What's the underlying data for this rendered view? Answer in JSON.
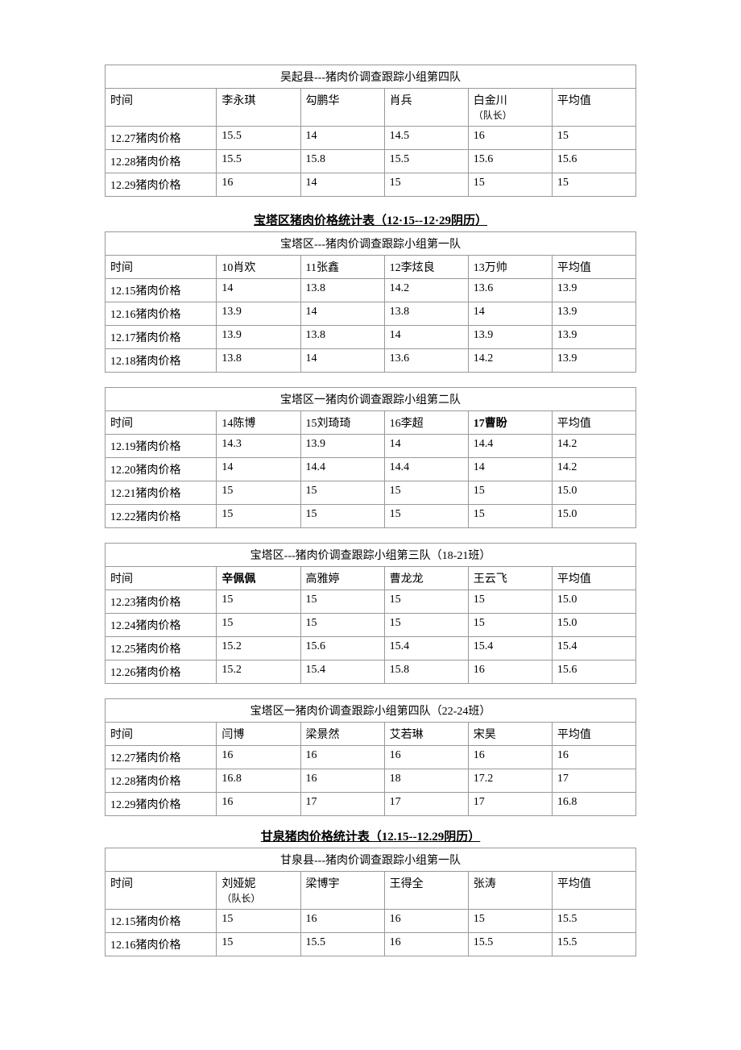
{
  "tables": [
    {
      "caption": "吴起县---猪肉价调查跟踪小组第四队",
      "headers": [
        "时间",
        "李永琪",
        "勾鹏华",
        "肖兵",
        "白金川",
        "平均值"
      ],
      "header_sub": [
        "",
        "",
        "",
        "",
        "（队长）",
        ""
      ],
      "rows": [
        [
          "12.27猪肉价格",
          "15.5",
          "14",
          "14.5",
          "16",
          "15"
        ],
        [
          "12.28猪肉价格",
          "15.5",
          "15.8",
          "15.5",
          "15.6",
          "15.6"
        ],
        [
          "12.29猪肉价格",
          "16",
          "14",
          "15",
          "15",
          "15"
        ]
      ]
    },
    {
      "section_title": "宝塔区猪肉价格统计表（12·15--12·29阴历）",
      "caption": "宝塔区---猪肉价调查跟踪小组第一队",
      "headers": [
        "时间",
        "10肖欢",
        "11张鑫",
        "12李炫良",
        "13万帅",
        "平均值"
      ],
      "rows": [
        [
          "12.15猪肉价格",
          "14",
          "13.8",
          "14.2",
          "13.6",
          "13.9"
        ],
        [
          "12.16猪肉价格",
          "13.9",
          "14",
          "13.8",
          "14",
          "13.9"
        ],
        [
          "12.17猪肉价格",
          "13.9",
          "13.8",
          "14",
          "13.9",
          "13.9"
        ],
        [
          "12.18猪肉价格",
          "13.8",
          "14",
          "13.6",
          "14.2",
          "13.9"
        ]
      ]
    },
    {
      "caption": "宝塔区一猪肉价调查跟踪小组第二队",
      "headers": [
        "时间",
        "14陈博",
        "15刘琦琦",
        "16李超",
        "17曹盼",
        "平均值"
      ],
      "bold_cols": [
        4
      ],
      "rows": [
        [
          "12.19猪肉价格",
          "14.3",
          "13.9",
          "14",
          "14.4",
          "14.2"
        ],
        [
          "12.20猪肉价格",
          "14",
          "14.4",
          "14.4",
          "14",
          "14.2"
        ],
        [
          "12.21猪肉价格",
          "15",
          "15",
          "15",
          "15",
          "15.0"
        ],
        [
          "12.22猪肉价格",
          "15",
          "15",
          "15",
          "15",
          "15.0"
        ]
      ]
    },
    {
      "caption": "宝塔区---猪肉价调查跟踪小组第三队（18-21班）",
      "headers": [
        "时间",
        "辛佩佩",
        "高雅婷",
        "曹龙龙",
        "王云飞",
        "平均值"
      ],
      "bold_cols": [
        1
      ],
      "rows": [
        [
          "12.23猪肉价格",
          "15",
          "15",
          "15",
          "15",
          "15.0"
        ],
        [
          "12.24猪肉价格",
          "15",
          "15",
          "15",
          "15",
          "15.0"
        ],
        [
          "12.25猪肉价格",
          "15.2",
          "15.6",
          "15.4",
          "15.4",
          "15.4"
        ],
        [
          "12.26猪肉价格",
          "15.2",
          "15.4",
          "15.8",
          "16",
          "15.6"
        ]
      ]
    },
    {
      "caption": "宝塔区一猪肉价调查跟踪小组第四队（22-24班）",
      "headers": [
        "时间",
        "闫博",
        "梁景然",
        "艾若琳",
        "宋昊",
        "平均值"
      ],
      "rows": [
        [
          "12.27猪肉价格",
          "16",
          "16",
          "16",
          "16",
          "16"
        ],
        [
          "12.28猪肉价格",
          "16.8",
          "16",
          "18",
          "17.2",
          "17"
        ],
        [
          "12.29猪肉价格",
          "16",
          "17",
          "17",
          "17",
          "16.8"
        ]
      ],
      "tight": true
    },
    {
      "section_title": "甘泉猪肉价格统计表（12.15--12.29阴历）",
      "caption": "甘泉县---猪肉价调查跟踪小组第一队",
      "headers": [
        "时间",
        "刘娅妮",
        "梁博宇",
        "王得全",
        "张涛",
        "平均值"
      ],
      "header_sub": [
        "",
        "（队长）",
        "",
        "",
        "",
        ""
      ],
      "rows": [
        [
          "12.15猪肉价格",
          "15",
          "16",
          "16",
          "15",
          "15.5"
        ],
        [
          "12.16猪肉价格",
          "15",
          "15.5",
          "16",
          "15.5",
          "15.5"
        ]
      ]
    }
  ]
}
